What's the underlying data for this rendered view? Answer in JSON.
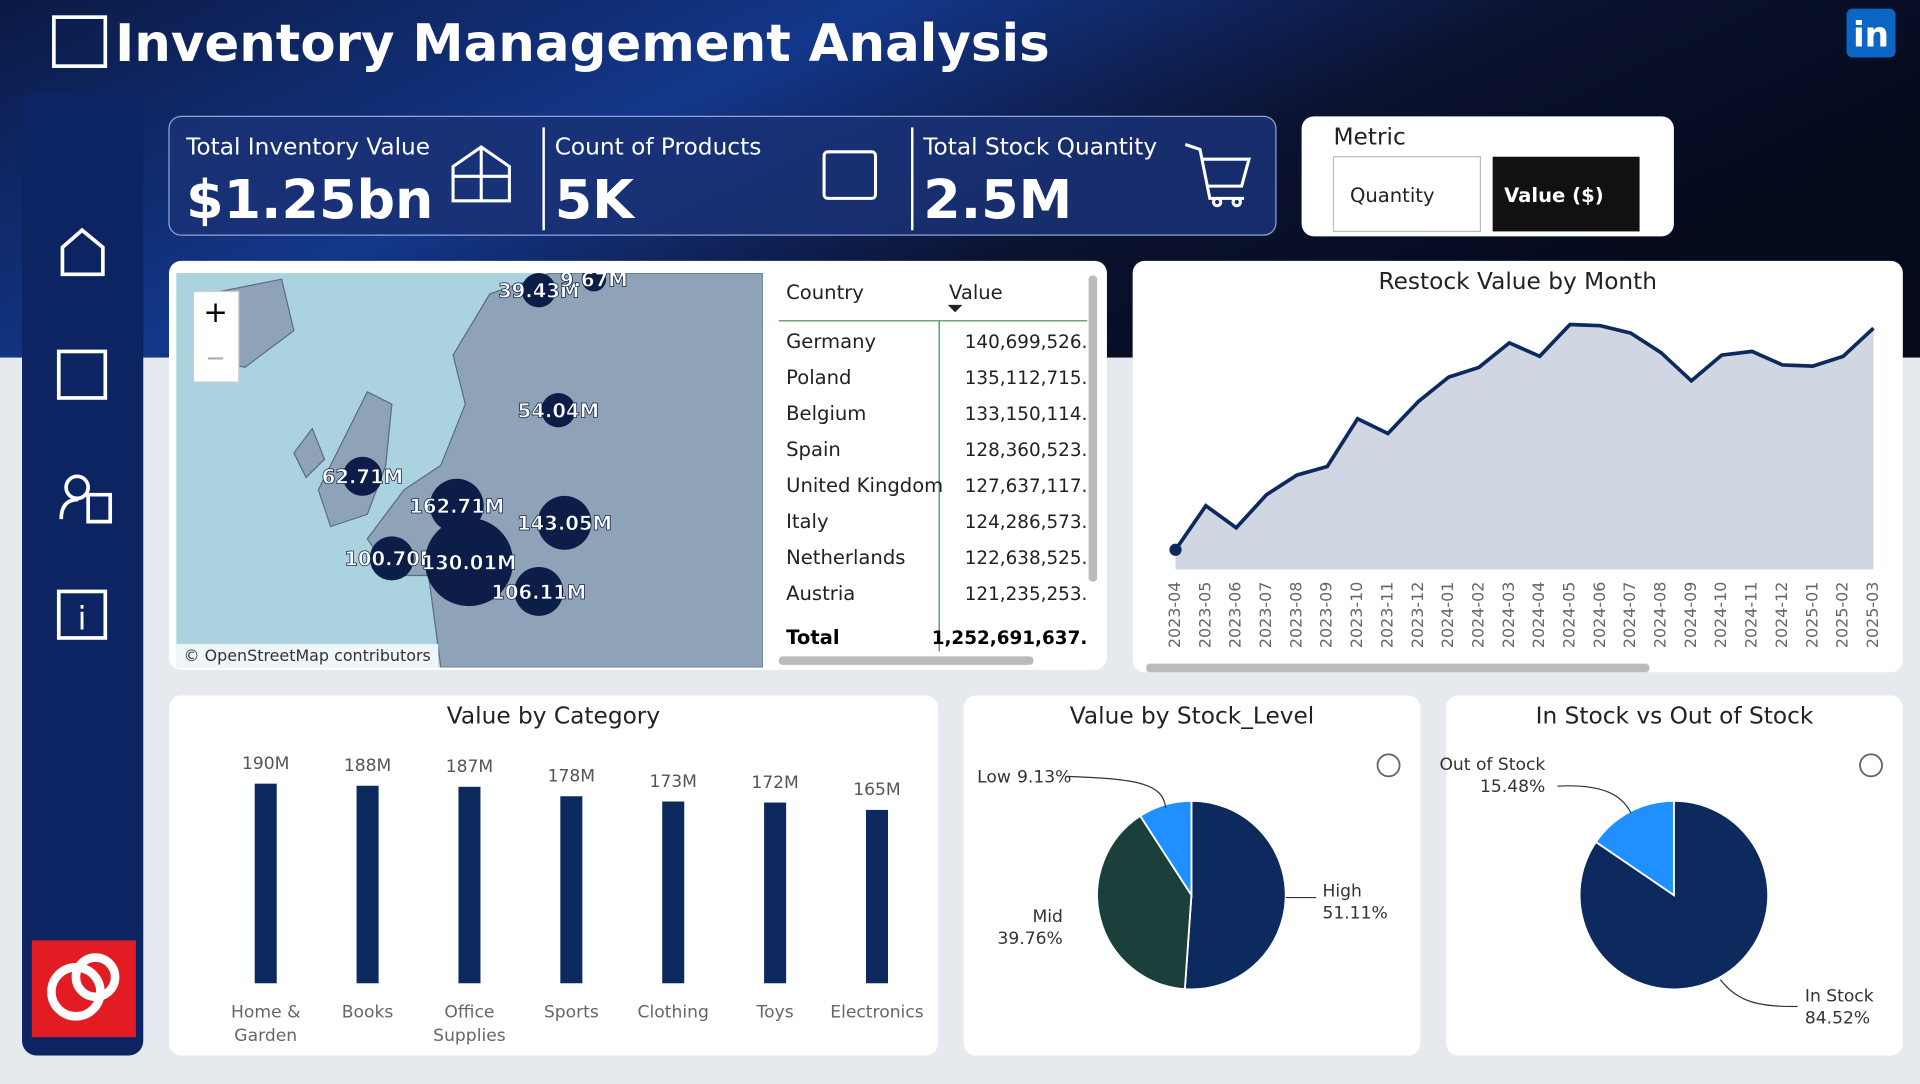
{
  "header": {
    "title": "Inventory Management Analysis"
  },
  "kpis": [
    {
      "label": "Total Inventory Value",
      "value": "$1.25bn"
    },
    {
      "label": "Count of Products",
      "value": "5K"
    },
    {
      "label": "Total Stock Quantity",
      "value": "2.5M"
    }
  ],
  "slicer": {
    "title": "Metric",
    "options": [
      "Quantity",
      "Value ($)"
    ]
  },
  "map": {
    "attribution": "© OpenStreetMap contributors",
    "bubbles": [
      "39.43M",
      "9.67M",
      "54.04M",
      "62.71M",
      "162.71M",
      "143.05M",
      "100.70M",
      "130.01M",
      "106.11M"
    ]
  },
  "table": {
    "columns": [
      "Country",
      "Value"
    ],
    "rows": [
      [
        "Germany",
        "140,699,526."
      ],
      [
        "Poland",
        "135,112,715."
      ],
      [
        "Belgium",
        "133,150,114."
      ],
      [
        "Spain",
        "128,360,523."
      ],
      [
        "United Kingdom",
        "127,637,117."
      ],
      [
        "Italy",
        "124,286,573."
      ],
      [
        "Netherlands",
        "122,638,525."
      ],
      [
        "Austria",
        "121,235,253."
      ]
    ],
    "total": [
      "Total",
      "1,252,691,637."
    ]
  },
  "chart_data": [
    {
      "type": "line",
      "title": "Restock Value by Month",
      "color": "#0d2a5e",
      "fill": "#d0d6e2",
      "x": [
        "2023-04",
        "2023-05",
        "2023-06",
        "2023-07",
        "2023-08",
        "2023-09",
        "2023-10",
        "2023-11",
        "2023-12",
        "2024-01",
        "2024-02",
        "2024-03",
        "2024-04",
        "2024-05",
        "2024-06",
        "2024-07",
        "2024-08",
        "2024-09",
        "2024-10",
        "2024-11",
        "2024-12",
        "2025-01",
        "2025-02",
        "2025-03"
      ],
      "values": [
        16,
        52,
        34,
        61,
        77,
        84,
        123,
        111,
        137,
        157,
        165,
        185,
        174,
        200,
        199,
        193,
        177,
        154,
        175,
        178,
        167,
        166,
        174,
        197
      ],
      "ylim": [
        0,
        220
      ]
    },
    {
      "type": "bar",
      "title": "Value by Category",
      "color": "#0d2a5e",
      "categories": [
        "Home & Garden",
        "Books",
        "Office Supplies",
        "Sports",
        "Clothing",
        "Toys",
        "Electronics"
      ],
      "values": [
        190,
        188,
        187,
        178,
        173,
        172,
        165
      ],
      "value_labels": [
        "190M",
        "188M",
        "187M",
        "178M",
        "173M",
        "172M",
        "165M"
      ],
      "ylim": [
        0,
        200
      ]
    },
    {
      "type": "pie",
      "title": "Value by Stock_Level",
      "categories": [
        "High",
        "Mid",
        "Low"
      ],
      "values": [
        51.11,
        39.76,
        9.13
      ],
      "value_labels": [
        "51.11%",
        "39.76%",
        "9.13%"
      ],
      "colors": [
        "#0d2a5e",
        "#1b3f3a",
        "#1e90ff"
      ]
    },
    {
      "type": "pie",
      "title": "In Stock vs Out of Stock",
      "categories": [
        "In Stock",
        "Out of Stock"
      ],
      "values": [
        84.52,
        15.48
      ],
      "value_labels": [
        "84.52%",
        "15.48%"
      ],
      "colors": [
        "#0d2a5e",
        "#1e90ff"
      ]
    }
  ]
}
